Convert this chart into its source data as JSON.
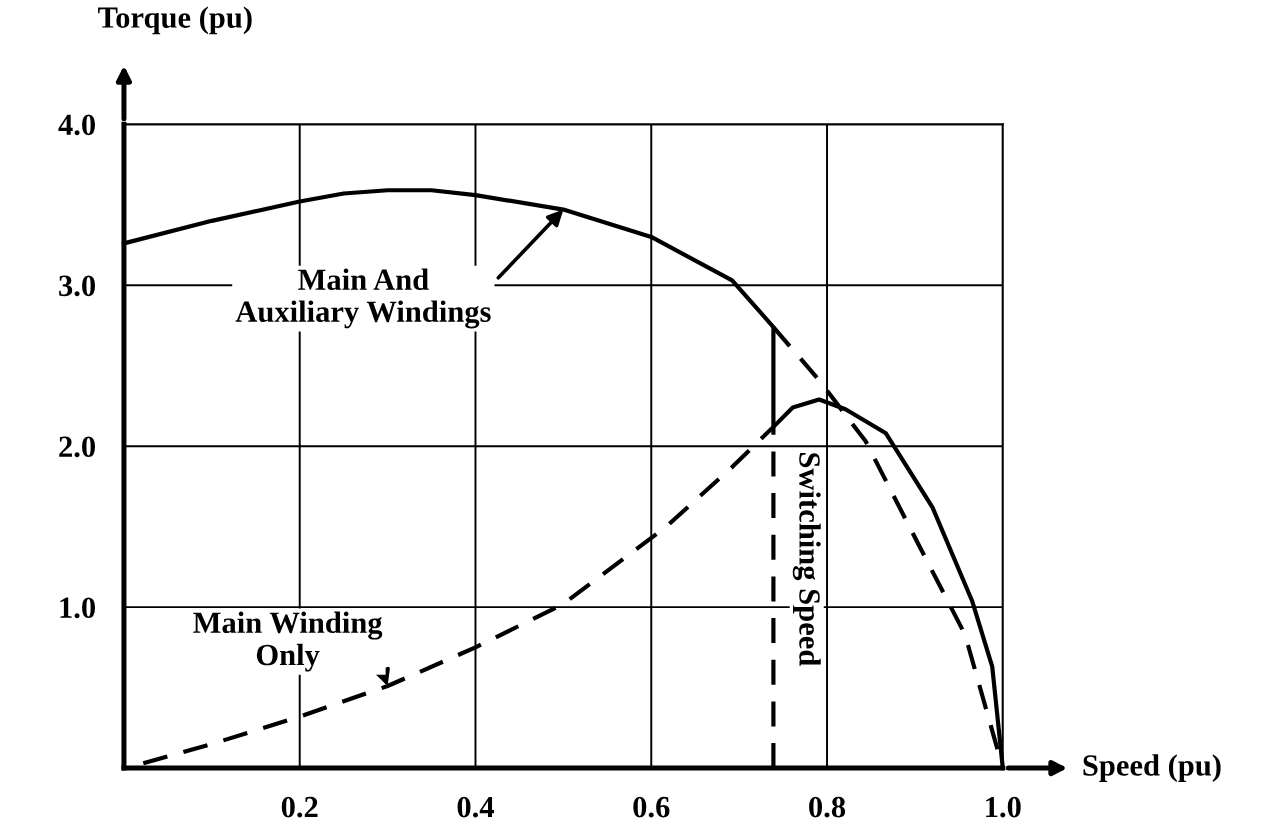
{
  "chart_data": {
    "type": "line",
    "xlabel": "Speed (pu)",
    "ylabel": "Torque (pu)",
    "xlim": [
      0,
      1.0
    ],
    "ylim": [
      0,
      4.0
    ],
    "xticks": [
      {
        "value": 0.2,
        "label": "0.2"
      },
      {
        "value": 0.4,
        "label": "0.4"
      },
      {
        "value": 0.6,
        "label": "0.6"
      },
      {
        "value": 0.8,
        "label": "0.8"
      },
      {
        "value": 1.0,
        "label": "1.0"
      }
    ],
    "yticks": [
      {
        "value": 1,
        "label": "1.0"
      },
      {
        "value": 2,
        "label": "2.0"
      },
      {
        "value": 3,
        "label": "3.0"
      },
      {
        "value": 4,
        "label": "4.0"
      }
    ],
    "grid": true,
    "marker": "none",
    "series": [
      {
        "color": "#000000",
        "line_style": "solid",
        "x": [
          0,
          0.1,
          0.2,
          0.25,
          0.3,
          0.35,
          0.4,
          0.5,
          0.541,
          0.6,
          0.692,
          0.739,
          0.739,
          0.761,
          0.791,
          0.821,
          0.867,
          0.92,
          0.965,
          0.988,
          1.0
        ],
        "values": [
          3.26,
          3.4,
          3.52,
          3.57,
          3.59,
          3.59,
          3.56,
          3.47,
          3.4,
          3.3,
          3.03,
          2.74,
          2.12,
          2.24,
          2.29,
          2.23,
          2.08,
          1.62,
          1.04,
          0.63,
          0
        ]
      },
      {
        "color": "#000000",
        "line_style": "dashed",
        "x": [
          0.022,
          0.1,
          0.2,
          0.3,
          0.4,
          0.5,
          0.617,
          0.692,
          0.739
        ],
        "values": [
          0.03,
          0.15,
          0.32,
          0.51,
          0.75,
          1.02,
          1.5,
          1.87,
          2.12
        ]
      },
      {
        "color": "#000000",
        "line_style": "dashed",
        "x": [
          0.739,
          0.791,
          0.844,
          0.905,
          0.957,
          1.0
        ],
        "values": [
          2.74,
          2.41,
          2.03,
          1.38,
          0.83,
          0
        ]
      },
      {
        "color": "#000000",
        "line_style": "dashed",
        "x": [
          0.739,
          0.739
        ],
        "values": [
          0,
          2.12
        ]
      }
    ],
    "annotations": [
      {
        "text": "Main And\nAuxiliary Windings",
        "x": 0.5,
        "y": 3.47
      },
      {
        "text": "Main Winding\nOnly",
        "x": 0.3,
        "y": 0.51
      },
      {
        "text": "Switching Speed",
        "x": 0.739,
        "y": 1.3
      }
    ]
  }
}
